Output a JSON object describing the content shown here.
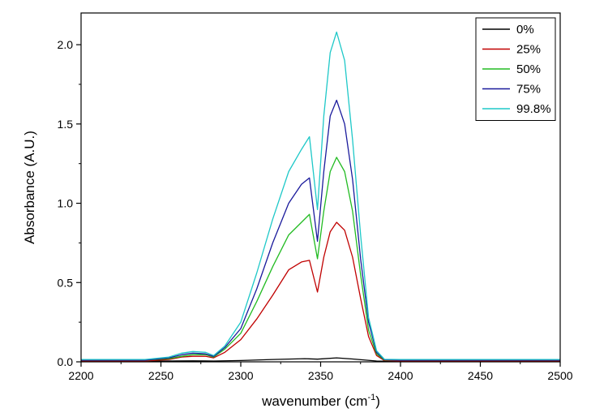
{
  "chart_data": {
    "type": "line",
    "xlabel": "wavenumber (cm",
    "xlabel_sup": "-1",
    "xlabel_end": ")",
    "ylabel": "Absorbance (A.U.)",
    "xlim": [
      2200,
      2500
    ],
    "ylim": [
      0,
      2.2
    ],
    "xticks": [
      2200,
      2250,
      2300,
      2350,
      2400,
      2450,
      2500
    ],
    "xtick_labels": [
      "2200",
      "2250",
      "2300",
      "2350",
      "2400",
      "2450",
      "2500"
    ],
    "yticks": [
      0,
      0.5,
      1.0,
      1.5,
      2.0
    ],
    "ytick_labels": [
      "0.0",
      "0.5",
      "1.0",
      "1.5",
      "2.0"
    ],
    "grid": false,
    "legend_position": "top-right",
    "series": [
      {
        "name": "0%",
        "color": "#000000",
        "x": [
          2200,
          2250,
          2270,
          2283,
          2300,
          2320,
          2340,
          2348,
          2360,
          2370,
          2385,
          2400,
          2500
        ],
        "y": [
          0.005,
          0.005,
          0.006,
          0.005,
          0.008,
          0.015,
          0.02,
          0.017,
          0.025,
          0.018,
          0.005,
          0.003,
          0.003
        ]
      },
      {
        "name": "25%",
        "color": "#c00000",
        "x": [
          2200,
          2240,
          2255,
          2263,
          2270,
          2278,
          2283,
          2290,
          2300,
          2310,
          2320,
          2330,
          2338,
          2343,
          2348,
          2352,
          2356,
          2360,
          2365,
          2370,
          2375,
          2380,
          2385,
          2390,
          2400,
          2500
        ],
        "y": [
          0.005,
          0.005,
          0.015,
          0.03,
          0.035,
          0.035,
          0.025,
          0.06,
          0.14,
          0.27,
          0.42,
          0.58,
          0.63,
          0.64,
          0.44,
          0.66,
          0.82,
          0.88,
          0.83,
          0.66,
          0.4,
          0.16,
          0.04,
          0.008,
          0.005,
          0.005
        ]
      },
      {
        "name": "50%",
        "color": "#22bb22",
        "x": [
          2200,
          2240,
          2255,
          2263,
          2270,
          2278,
          2283,
          2290,
          2300,
          2310,
          2320,
          2330,
          2338,
          2343,
          2348,
          2352,
          2356,
          2360,
          2365,
          2370,
          2375,
          2380,
          2385,
          2390,
          2400,
          2500
        ],
        "y": [
          0.01,
          0.01,
          0.02,
          0.035,
          0.045,
          0.045,
          0.03,
          0.08,
          0.18,
          0.38,
          0.6,
          0.8,
          0.88,
          0.93,
          0.65,
          0.95,
          1.2,
          1.29,
          1.2,
          0.95,
          0.55,
          0.2,
          0.05,
          0.012,
          0.01,
          0.01
        ]
      },
      {
        "name": "75%",
        "color": "#1a1a9c",
        "x": [
          2200,
          2240,
          2255,
          2263,
          2270,
          2278,
          2283,
          2290,
          2300,
          2310,
          2320,
          2330,
          2338,
          2343,
          2348,
          2352,
          2356,
          2360,
          2365,
          2370,
          2375,
          2380,
          2385,
          2390,
          2400,
          2500
        ],
        "y": [
          0.01,
          0.01,
          0.025,
          0.045,
          0.055,
          0.05,
          0.035,
          0.09,
          0.21,
          0.46,
          0.75,
          1.0,
          1.12,
          1.16,
          0.76,
          1.2,
          1.55,
          1.65,
          1.5,
          1.15,
          0.65,
          0.25,
          0.06,
          0.014,
          0.01,
          0.01
        ]
      },
      {
        "name": "99.8%",
        "color": "#1ec8c8",
        "x": [
          2200,
          2240,
          2255,
          2263,
          2270,
          2278,
          2283,
          2290,
          2300,
          2310,
          2320,
          2330,
          2338,
          2343,
          2348,
          2352,
          2356,
          2360,
          2365,
          2370,
          2375,
          2380,
          2385,
          2390,
          2400,
          2500
        ],
        "y": [
          0.015,
          0.015,
          0.03,
          0.055,
          0.065,
          0.06,
          0.04,
          0.1,
          0.25,
          0.56,
          0.9,
          1.2,
          1.34,
          1.42,
          0.96,
          1.55,
          1.95,
          2.08,
          1.9,
          1.4,
          0.8,
          0.28,
          0.07,
          0.016,
          0.015,
          0.015
        ]
      }
    ]
  }
}
